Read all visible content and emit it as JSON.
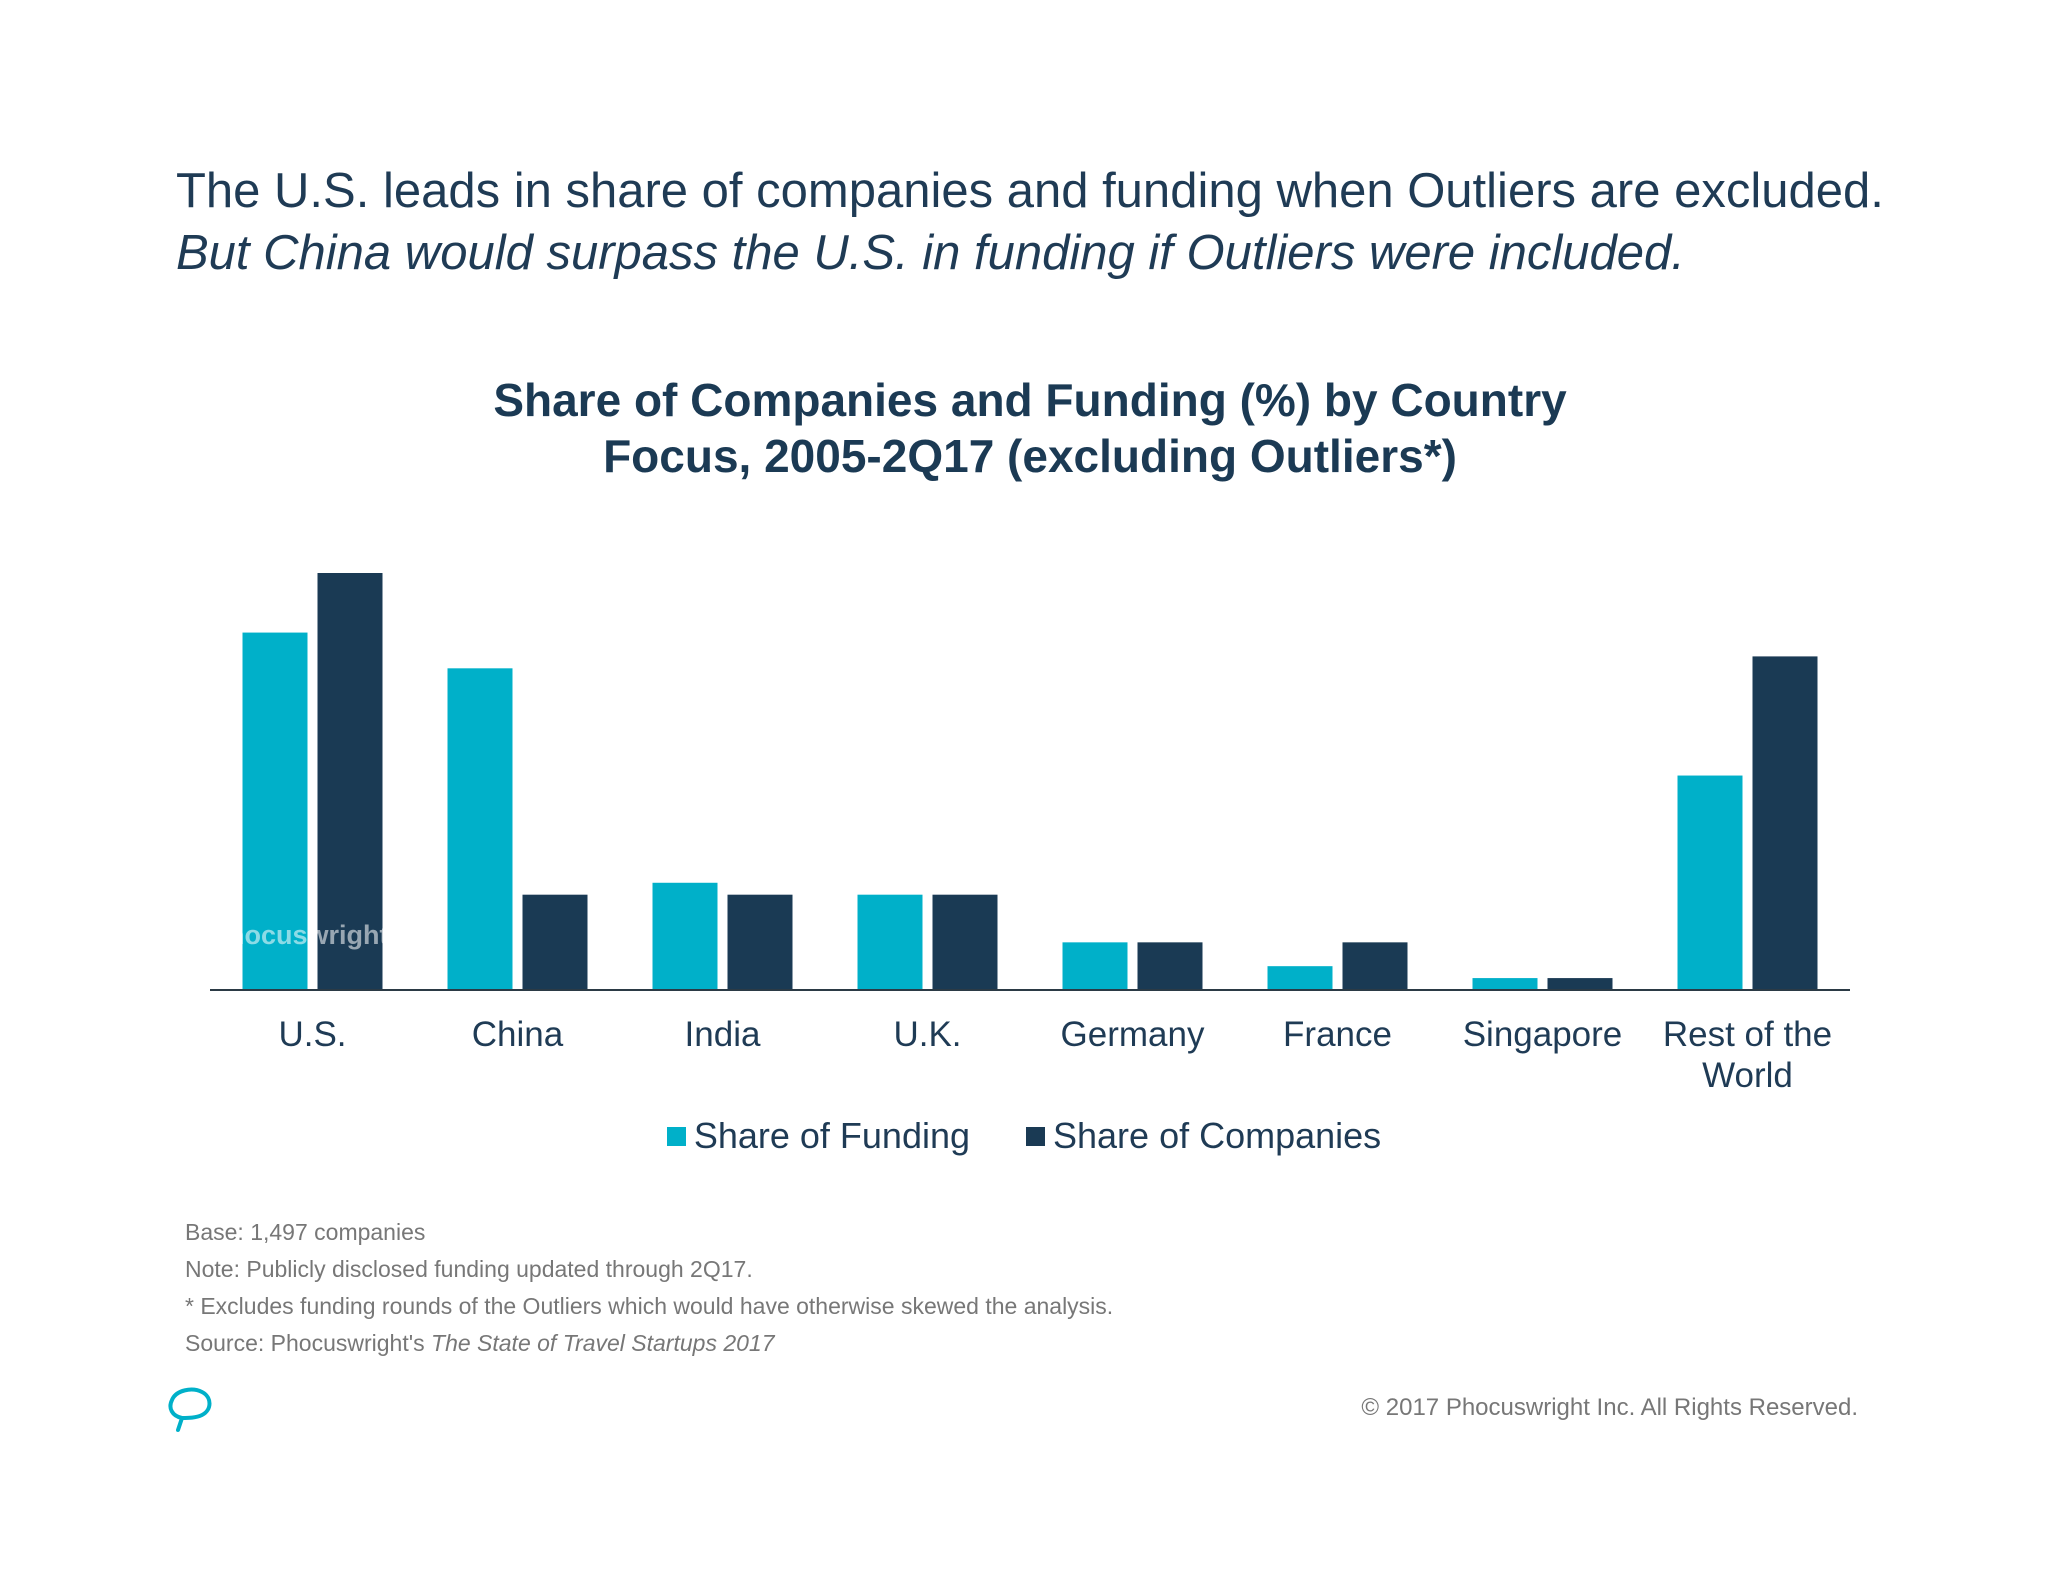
{
  "headline": {
    "line1": "The U.S. leads in share of companies and funding when Outliers are excluded.",
    "line2": "But China would surpass the U.S. in funding if Outliers were included."
  },
  "chart_data": {
    "type": "bar",
    "title": "Share of Companies and Funding (%) by Country Focus, 2005-2Q17 (excluding Outliers*)",
    "title_lines": [
      "Share of Companies and Funding (%) by Country",
      "Focus, 2005-2Q17 (excluding Outliers*)"
    ],
    "categories": [
      [
        "U.S."
      ],
      [
        "China"
      ],
      [
        "India"
      ],
      [
        "U.K."
      ],
      [
        "Germany"
      ],
      [
        "France"
      ],
      [
        "Singapore"
      ],
      [
        "Rest of the",
        "World"
      ]
    ],
    "series": [
      {
        "name": "Share of Funding",
        "color": "#00b0c9",
        "values": [
          30,
          27,
          9,
          8,
          4,
          2,
          1,
          18
        ]
      },
      {
        "name": "Share of Companies",
        "color": "#1a3a54",
        "values": [
          35,
          8,
          8,
          8,
          4,
          4,
          1,
          28
        ]
      }
    ],
    "xlabel": "",
    "ylabel": "",
    "ylim": [
      0,
      35
    ],
    "grid": false,
    "legend_position": "bottom"
  },
  "watermark": "Phocuswright",
  "footnotes": {
    "base": "Base: 1,497 companies",
    "note": "Note: Publicly disclosed funding updated through 2Q17.",
    "excludes": "* Excludes funding rounds of the Outliers which would have otherwise skewed the analysis.",
    "source_prefix": "Source: Phocuswright's ",
    "source_title": "The State of Travel Startups 2017"
  },
  "copyright": "© 2017 Phocuswright Inc. All Rights Reserved.",
  "icons": {
    "logo": "phocuswright-logo-icon"
  }
}
